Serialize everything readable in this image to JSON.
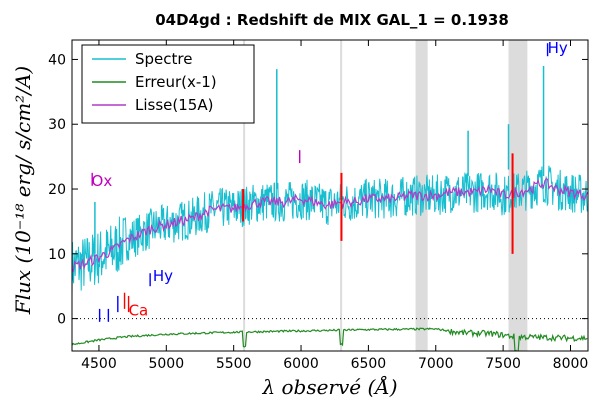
{
  "chart_data": {
    "type": "line",
    "title": "04D4gd : Redshift de MIX GAL_1 = 0.1938",
    "xlabel": "λ observé (Å)",
    "ylabel": "Flux (10⁻¹⁸ erg/ s/cm²/A)",
    "xlim": [
      4300,
      8130
    ],
    "ylim": [
      -5,
      43
    ],
    "xticks": [
      4500,
      5000,
      5500,
      6000,
      6500,
      7000,
      7500,
      8000
    ],
    "yticks": [
      0,
      10,
      20,
      30,
      40
    ],
    "legend": {
      "placement": "top-left",
      "entries": [
        "Spectre",
        "Erreur(x-1)",
        "Lisse(15A)"
      ]
    },
    "colors": {
      "spectre": "#17becf",
      "erreur": "#228b22",
      "lisse": "#b03cc8",
      "blue_labels": "#0000ff",
      "red_labels": "#ff0000",
      "magenta_labels": "#c000c0",
      "bands": "#dcdcdc"
    },
    "zero_line": {
      "y": 0,
      "style": "dotted"
    },
    "shaded_bands": [
      {
        "x0": 5570,
        "x1": 5585
      },
      {
        "x0": 6290,
        "x1": 6305
      },
      {
        "x0": 6850,
        "x1": 6940
      },
      {
        "x0": 7540,
        "x1": 7680
      }
    ],
    "series": [
      {
        "name": "Spectre",
        "color": "#17becf",
        "x": [
          4300,
          4400,
          4500,
          4600,
          4700,
          4800,
          4900,
          5000,
          5100,
          5200,
          5300,
          5400,
          5500,
          5600,
          5700,
          5800,
          5900,
          6000,
          6100,
          6200,
          6300,
          6400,
          6500,
          6600,
          6700,
          6800,
          6900,
          7000,
          7100,
          7200,
          7300,
          7400,
          7500,
          7600,
          7700,
          7800,
          7900,
          8000,
          8130
        ],
        "y": [
          8,
          8.5,
          9.5,
          10.5,
          12,
          13,
          14,
          14.5,
          15,
          15.5,
          16.5,
          17,
          17,
          17.5,
          18,
          18,
          18,
          18.5,
          18,
          17.5,
          18,
          18,
          18.5,
          18.5,
          18.5,
          19,
          19,
          19,
          19.5,
          19.5,
          19.5,
          20,
          19,
          19.5,
          20,
          21,
          20,
          19.5,
          19
        ]
      },
      {
        "name": "Erreur(x-1)",
        "color": "#228b22",
        "x": [
          4300,
          4500,
          4700,
          5000,
          5500,
          6000,
          6500,
          7000,
          7200,
          7400,
          7600,
          7800,
          8000,
          8130
        ],
        "y": [
          -4,
          -3.3,
          -2.8,
          -2.4,
          -2.1,
          -1.9,
          -1.7,
          -1.6,
          -2.2,
          -2.3,
          -2.8,
          -2.9,
          -3.0,
          -3.0
        ]
      },
      {
        "name": "Lisse(15A)",
        "color": "#b03cc8",
        "x": [
          4300,
          4400,
          4500,
          4600,
          4700,
          4800,
          4900,
          5000,
          5100,
          5200,
          5300,
          5400,
          5500,
          5600,
          5700,
          5800,
          5900,
          6000,
          6100,
          6200,
          6300,
          6400,
          6500,
          6600,
          6700,
          6800,
          6900,
          7000,
          7100,
          7200,
          7300,
          7400,
          7500,
          7600,
          7700,
          7800,
          7900,
          8000,
          8130
        ],
        "y": [
          8,
          8.5,
          9.5,
          10.5,
          12,
          13,
          14,
          14.5,
          15,
          15.5,
          16.5,
          17,
          17,
          17.5,
          18,
          18,
          18,
          18.5,
          18,
          17.5,
          18,
          18,
          18.5,
          18.5,
          18.5,
          19,
          19,
          19,
          19.5,
          19.5,
          19.5,
          20,
          19,
          19.5,
          20,
          21,
          20,
          19.5,
          19
        ]
      }
    ],
    "spikes": [
      {
        "x": 5820,
        "y0": 20,
        "y1": 38.5,
        "color": "#17becf"
      },
      {
        "x": 7800,
        "y0": 22,
        "y1": 39,
        "color": "#17becf"
      },
      {
        "x": 7240,
        "y0": 22,
        "y1": 29,
        "color": "#17becf"
      },
      {
        "x": 7540,
        "y0": 23,
        "y1": 30,
        "color": "#17becf"
      },
      {
        "x": 4470,
        "y0": 10,
        "y1": 18,
        "color": "#17becf"
      }
    ],
    "red_markers": [
      {
        "x": 5570,
        "y0": 15,
        "y1": 20
      },
      {
        "x": 6300,
        "y0": 12,
        "y1": 22.5
      },
      {
        "x": 7570,
        "y0": 10,
        "y1": 25.5
      }
    ],
    "line_labels": [
      {
        "text": "Hy",
        "x": 7830,
        "y": 41,
        "color": "#0000ff"
      },
      {
        "text": "Ox",
        "x": 4445,
        "y": 20.5,
        "color": "#c000c0"
      },
      {
        "text": "Hy",
        "x": 4900,
        "y": 5.8,
        "color": "#0000ff"
      },
      {
        "text": "Ca",
        "x": 4720,
        "y": 0.5,
        "color": "#ff0000"
      }
    ],
    "line_ticks": [
      {
        "x": 5990,
        "y0": 24,
        "y1": 26,
        "color": "#c000c0"
      },
      {
        "x": 4450,
        "y0": 20.5,
        "y1": 22.5,
        "color": "#c000c0"
      },
      {
        "x": 4880,
        "y0": 5,
        "y1": 7,
        "color": "#0000ff"
      },
      {
        "x": 7830,
        "y0": 40.5,
        "y1": 42.5,
        "color": "#0000ff"
      },
      {
        "x": 4505,
        "y0": -0.5,
        "y1": 1.5,
        "color": "#0000ff"
      },
      {
        "x": 4570,
        "y0": -0.5,
        "y1": 1.5,
        "color": "#0000ff"
      },
      {
        "x": 4640,
        "y0": 1,
        "y1": 3.5,
        "color": "#0000ff"
      },
      {
        "x": 4690,
        "y0": 1.5,
        "y1": 4,
        "color": "#ff0000"
      },
      {
        "x": 4720,
        "y0": 1,
        "y1": 3.5,
        "color": "#ff0000"
      }
    ]
  }
}
